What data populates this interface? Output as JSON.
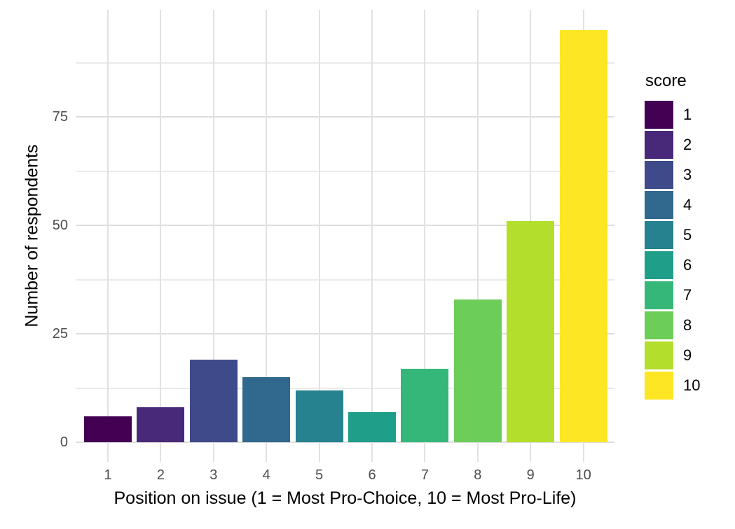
{
  "chart_data": {
    "type": "bar",
    "title": "",
    "xlabel": "Position on issue (1 = Most Pro-Choice, 10 = Most Pro-Life)",
    "ylabel": "Number of respondents",
    "categories": [
      "1",
      "2",
      "3",
      "4",
      "5",
      "6",
      "7",
      "8",
      "9",
      "10"
    ],
    "values": [
      6,
      8,
      19,
      15,
      12,
      7,
      17,
      33,
      51,
      95
    ],
    "bar_colors": [
      "#440154",
      "#482878",
      "#3e4a89",
      "#31688e",
      "#26828e",
      "#1f9e89",
      "#35b779",
      "#6dcd59",
      "#b4de2c",
      "#fde725"
    ],
    "ylim": [
      0,
      99.75
    ],
    "yticks": [
      0,
      25,
      50,
      75
    ],
    "yticks_minor": [
      12.5,
      37.5,
      62.5,
      87.5
    ],
    "grid": true,
    "legend": {
      "title": "score",
      "position": "right",
      "entries": [
        {
          "label": "1",
          "color": "#440154"
        },
        {
          "label": "2",
          "color": "#482878"
        },
        {
          "label": "3",
          "color": "#3e4a89"
        },
        {
          "label": "4",
          "color": "#31688e"
        },
        {
          "label": "5",
          "color": "#26828e"
        },
        {
          "label": "6",
          "color": "#1f9e89"
        },
        {
          "label": "7",
          "color": "#35b779"
        },
        {
          "label": "8",
          "color": "#6dcd59"
        },
        {
          "label": "9",
          "color": "#b4de2c"
        },
        {
          "label": "10",
          "color": "#fde725"
        }
      ]
    }
  }
}
